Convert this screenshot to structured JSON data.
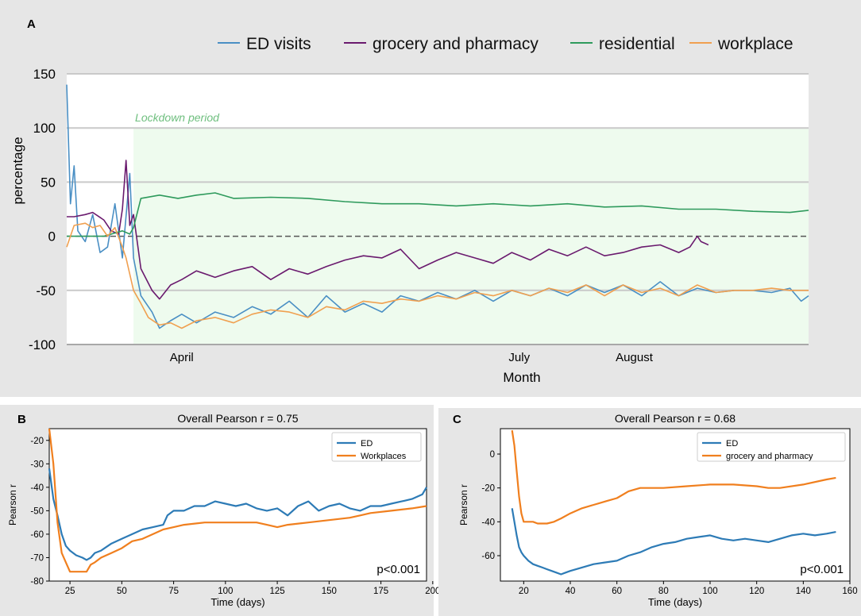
{
  "chart_data": [
    {
      "panel": "A",
      "type": "line",
      "title": "",
      "xlabel": "Month",
      "ylabel": "percentage",
      "ylim": [
        -100,
        150
      ],
      "yticks": [
        150,
        100,
        50,
        0,
        -50,
        -100
      ],
      "ytick_labels": [
        "150",
        "100",
        "50",
        "0",
        "-50",
        "-100"
      ],
      "x_range_days": [
        15,
        215
      ],
      "month_ticks": [
        {
          "label": "April",
          "day": 46
        },
        {
          "label": "July",
          "day": 137
        },
        {
          "label": "August",
          "day": 168
        }
      ],
      "shaded_region": {
        "label": "Lockdown period",
        "start_day": 33,
        "end_day": 215
      },
      "zero_line": true,
      "series": [
        {
          "name": "ED visits",
          "color": "#4a8fc4",
          "x": [
            15,
            16,
            17,
            18,
            20,
            22,
            24,
            26,
            28,
            30,
            32,
            33,
            35,
            38,
            40,
            43,
            46,
            50,
            55,
            60,
            65,
            70,
            75,
            80,
            85,
            90,
            95,
            100,
            105,
            110,
            115,
            120,
            125,
            130,
            135,
            140,
            145,
            150,
            155,
            160,
            165,
            170,
            175,
            180,
            185,
            190,
            195,
            200,
            205,
            210,
            213,
            215
          ],
          "y": [
            140,
            30,
            65,
            5,
            -5,
            20,
            -15,
            -10,
            30,
            -20,
            58,
            -20,
            -55,
            -70,
            -85,
            -78,
            -72,
            -80,
            -70,
            -75,
            -65,
            -72,
            -60,
            -75,
            -55,
            -70,
            -62,
            -70,
            -55,
            -60,
            -52,
            -58,
            -50,
            -60,
            -50,
            -55,
            -48,
            -55,
            -45,
            -52,
            -45,
            -55,
            -42,
            -55,
            -48,
            -52,
            -50,
            -50,
            -52,
            -48,
            -60,
            -55
          ]
        },
        {
          "name": "grocery and pharmacy",
          "color": "#6a1a6e",
          "x": [
            15,
            17,
            20,
            22,
            25,
            27,
            29,
            30,
            31,
            32,
            33,
            35,
            38,
            40,
            43,
            46,
            50,
            55,
            60,
            65,
            70,
            75,
            80,
            85,
            90,
            95,
            100,
            105,
            110,
            115,
            120,
            125,
            130,
            135,
            140,
            145,
            150,
            155,
            160,
            165,
            170,
            175,
            180,
            183,
            185,
            186,
            188
          ],
          "y": [
            18,
            18,
            20,
            22,
            15,
            5,
            2,
            25,
            70,
            10,
            20,
            -30,
            -50,
            -58,
            -45,
            -40,
            -32,
            -38,
            -32,
            -28,
            -40,
            -30,
            -35,
            -28,
            -22,
            -18,
            -20,
            -12,
            -30,
            -22,
            -15,
            -20,
            -25,
            -15,
            -22,
            -12,
            -18,
            -10,
            -18,
            -15,
            -10,
            -8,
            -15,
            -10,
            0,
            -5,
            -8
          ]
        },
        {
          "name": "residential",
          "color": "#2e9a5c",
          "x": [
            15,
            20,
            25,
            30,
            32,
            33,
            35,
            40,
            45,
            50,
            55,
            60,
            70,
            80,
            90,
            100,
            110,
            120,
            130,
            140,
            150,
            160,
            170,
            180,
            190,
            200,
            210,
            215
          ],
          "y": [
            0,
            0,
            0,
            5,
            2,
            8,
            35,
            38,
            35,
            38,
            40,
            35,
            36,
            35,
            32,
            30,
            30,
            28,
            30,
            28,
            30,
            27,
            28,
            25,
            25,
            23,
            22,
            24
          ]
        },
        {
          "name": "workplace",
          "color": "#f0a050",
          "x": [
            15,
            17,
            20,
            22,
            24,
            26,
            28,
            30,
            31,
            33,
            35,
            37,
            40,
            43,
            46,
            50,
            55,
            60,
            65,
            70,
            75,
            80,
            85,
            90,
            95,
            100,
            105,
            110,
            115,
            120,
            125,
            130,
            135,
            140,
            145,
            150,
            155,
            160,
            165,
            170,
            175,
            180,
            185,
            190,
            195,
            200,
            205,
            210,
            215
          ],
          "y": [
            -10,
            10,
            12,
            8,
            10,
            0,
            8,
            -10,
            -20,
            -50,
            -62,
            -75,
            -82,
            -80,
            -85,
            -78,
            -75,
            -80,
            -72,
            -68,
            -70,
            -75,
            -65,
            -68,
            -60,
            -62,
            -58,
            -60,
            -55,
            -58,
            -52,
            -55,
            -50,
            -55,
            -48,
            -52,
            -45,
            -55,
            -45,
            -52,
            -48,
            -55,
            -45,
            -52,
            -50,
            -50,
            -48,
            -50,
            -50
          ]
        }
      ]
    },
    {
      "panel": "B",
      "type": "line",
      "title": "Overall Pearson r = 0.75",
      "xlabel": "Time (days)",
      "ylabel": "Pearson r",
      "xlim": [
        15,
        197
      ],
      "ylim": [
        -80,
        -15
      ],
      "xticks": [
        25,
        50,
        75,
        100,
        125,
        150,
        175,
        200
      ],
      "yticks": [
        -20,
        -30,
        -40,
        -50,
        -60,
        -70,
        -80
      ],
      "annotation": "p<0.001",
      "series": [
        {
          "name": "ED",
          "color": "#2d7bb6",
          "x": [
            15,
            17,
            19,
            21,
            23,
            25,
            28,
            31,
            33,
            35,
            37,
            40,
            45,
            50,
            55,
            60,
            65,
            70,
            72,
            75,
            80,
            85,
            90,
            95,
            100,
            105,
            110,
            115,
            120,
            125,
            130,
            135,
            140,
            145,
            150,
            155,
            160,
            165,
            170,
            175,
            180,
            185,
            190,
            195,
            197
          ],
          "y": [
            -32,
            -45,
            -52,
            -60,
            -65,
            -67,
            -69,
            -70,
            -71,
            -70,
            -68,
            -67,
            -64,
            -62,
            -60,
            -58,
            -57,
            -56,
            -52,
            -50,
            -50,
            -48,
            -48,
            -46,
            -47,
            -48,
            -47,
            -49,
            -50,
            -49,
            -52,
            -48,
            -46,
            -50,
            -48,
            -47,
            -49,
            -50,
            -48,
            -48,
            -47,
            -46,
            -45,
            -43,
            -40
          ]
        },
        {
          "name": "Workplaces",
          "color": "#f07f1e",
          "x": [
            15,
            17,
            19,
            21,
            23,
            25,
            28,
            30,
            33,
            35,
            37,
            40,
            45,
            50,
            55,
            60,
            65,
            70,
            75,
            80,
            90,
            100,
            110,
            115,
            120,
            125,
            130,
            140,
            150,
            160,
            165,
            170,
            180,
            190,
            197
          ],
          "y": [
            -15,
            -30,
            -55,
            -68,
            -72,
            -76,
            -76,
            -76,
            -76,
            -73,
            -72,
            -70,
            -68,
            -66,
            -63,
            -62,
            -60,
            -58,
            -57,
            -56,
            -55,
            -55,
            -55,
            -55,
            -56,
            -57,
            -56,
            -55,
            -54,
            -53,
            -52,
            -51,
            -50,
            -49,
            -48
          ]
        }
      ]
    },
    {
      "panel": "C",
      "type": "line",
      "title": "Overall Pearson r = 0.68",
      "xlabel": "Time (days)",
      "ylabel": "Pearson r",
      "xlim": [
        10,
        160
      ],
      "ylim": [
        -75,
        15
      ],
      "xticks": [
        20,
        40,
        60,
        80,
        100,
        120,
        140,
        160
      ],
      "yticks": [
        0,
        -20,
        -40,
        -60
      ],
      "annotation": "p<0.001",
      "series": [
        {
          "name": "ED",
          "color": "#2d7bb6",
          "x": [
            15,
            16,
            17,
            18,
            19,
            20,
            22,
            24,
            26,
            28,
            30,
            32,
            34,
            36,
            38,
            40,
            45,
            50,
            55,
            60,
            65,
            70,
            75,
            80,
            85,
            90,
            95,
            100,
            105,
            110,
            115,
            120,
            125,
            130,
            135,
            140,
            145,
            150,
            154
          ],
          "y": [
            -32,
            -40,
            -48,
            -55,
            -58,
            -60,
            -63,
            -65,
            -66,
            -67,
            -68,
            -69,
            -70,
            -71,
            -70,
            -69,
            -67,
            -65,
            -64,
            -63,
            -60,
            -58,
            -55,
            -53,
            -52,
            -50,
            -49,
            -48,
            -50,
            -51,
            -50,
            -51,
            -52,
            -50,
            -48,
            -47,
            -48,
            -47,
            -46
          ]
        },
        {
          "name": "grocery and pharmacy",
          "color": "#f07f1e",
          "x": [
            15,
            16,
            17,
            18,
            19,
            20,
            22,
            24,
            26,
            28,
            30,
            33,
            36,
            40,
            45,
            50,
            55,
            60,
            65,
            70,
            80,
            90,
            100,
            110,
            120,
            125,
            130,
            140,
            150,
            154
          ],
          "y": [
            14,
            5,
            -10,
            -25,
            -35,
            -40,
            -40,
            -40,
            -41,
            -41,
            -41,
            -40,
            -38,
            -35,
            -32,
            -30,
            -28,
            -26,
            -22,
            -20,
            -20,
            -19,
            -18,
            -18,
            -19,
            -20,
            -20,
            -18,
            -15,
            -14
          ]
        }
      ]
    }
  ]
}
